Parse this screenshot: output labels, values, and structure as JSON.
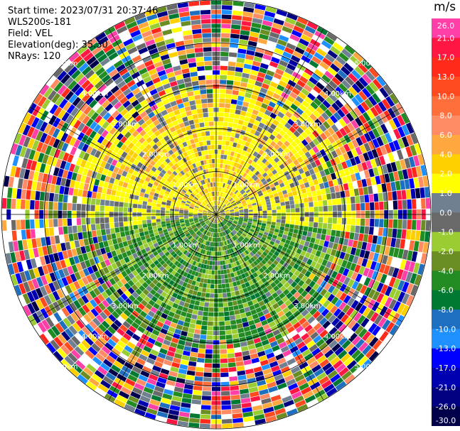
{
  "info": {
    "start_time": "Start time: 2023/07/31 20:37:46",
    "instrument": "WLS200s-181",
    "field": "Field: VEL",
    "elevation": "Elevation(deg): 35.30",
    "nrays": "NRays: 120"
  },
  "colorbar": {
    "unit": "m/s",
    "ticks": [
      "26.0",
      "21.0",
      "17.0",
      "13.0",
      "10.0",
      "8.0",
      "6.0",
      "4.0",
      "2.0",
      "1.0",
      "0.0",
      "-1.0",
      "-2.0",
      "-4.0",
      "-6.0",
      "-8.0",
      "-10.0",
      "-13.0",
      "-17.0",
      "-21.0",
      "-26.0",
      "-30.0"
    ],
    "colors": [
      "#ff3fa8",
      "#ff1744",
      "#ff2a1a",
      "#ff4a20",
      "#ff6f3c",
      "#ff8c64",
      "#ffa840",
      "#ffd000",
      "#ffff00",
      "#708090",
      "#696969",
      "#9acd32",
      "#6b8e23",
      "#228b22",
      "#007a33",
      "#1e6fbf",
      "#1e90ff",
      "#0000ff",
      "#0000b0",
      "#000080",
      "#00004a"
    ]
  },
  "chart_data": {
    "type": "heatmap",
    "subtype": "ppi-polar",
    "field": "VEL",
    "units": "m/s",
    "nrays": 120,
    "range_ring_labels": [
      "1.00km",
      "2.00km",
      "3.00km",
      "4.00km",
      "5.00km"
    ],
    "range_rings_km": [
      1,
      2,
      3,
      4,
      5
    ],
    "vmin": -30.0,
    "vmax": 26.0
  }
}
